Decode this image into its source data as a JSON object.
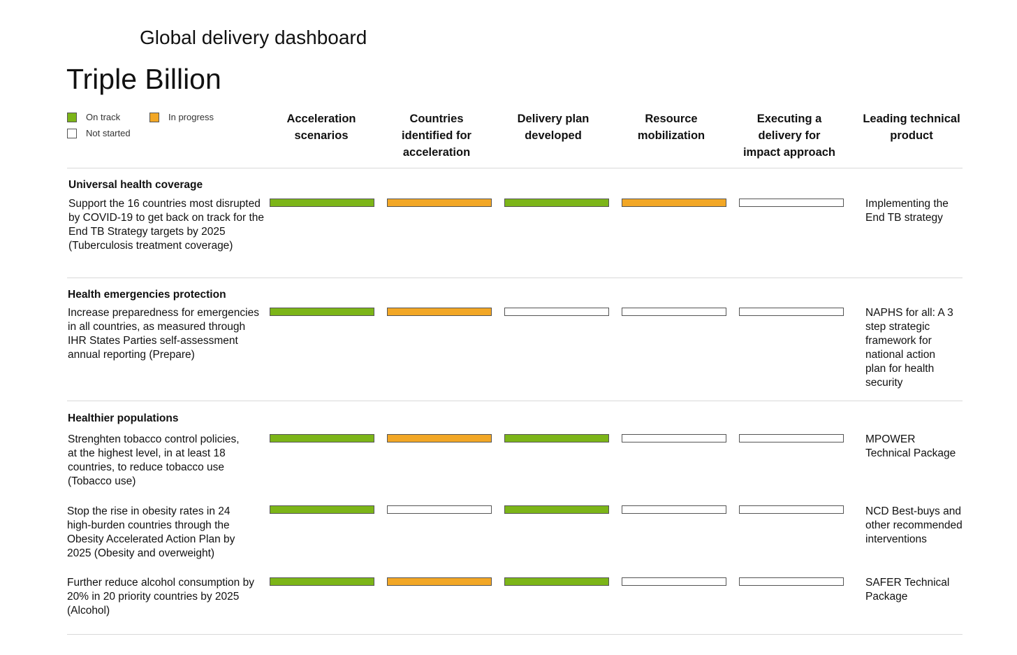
{
  "header": {
    "app_title": "Global delivery dashboard",
    "page_title": "Triple Billion"
  },
  "legend": [
    {
      "label": "On track",
      "status": "on_track"
    },
    {
      "label": "In progress",
      "status": "in_progress"
    },
    {
      "label": "Not started",
      "status": "not_started"
    }
  ],
  "status_colors": {
    "on_track": "#7CB518",
    "in_progress": "#F2A726",
    "not_started": "#FFFFFF"
  },
  "columns": [
    "Acceleration scenarios",
    "Countries identified for acceleration",
    "Delivery plan developed",
    "Resource mobilization",
    "Executing a delivery for impact approach",
    "Leading technical product"
  ],
  "sections": [
    {
      "title": "Universal health coverage",
      "rows": [
        {
          "goal": "Support the 16 countries most disrupted by COVID-19 to get back on track for the End TB Strategy targets by 2025 (Tuberculosis treatment coverage)",
          "statuses": [
            "on_track",
            "in_progress",
            "on_track",
            "in_progress",
            "not_started"
          ],
          "product": "Implementing the End TB strategy"
        }
      ]
    },
    {
      "title": "Health emergencies protection",
      "rows": [
        {
          "goal": "Increase preparedness for emergencies in all countries, as measured through IHR States Parties self-assessment annual reporting (Prepare)",
          "statuses": [
            "on_track",
            "in_progress",
            "not_started",
            "not_started",
            "not_started"
          ],
          "product": "NAPHS for all: A 3 step strategic framework for national action plan for health security"
        }
      ]
    },
    {
      "title": "Healthier populations",
      "rows": [
        {
          "goal": "Strenghten tobacco control policies, at the highest level, in at least 18 countries, to reduce tobacco use (Tobacco use)",
          "statuses": [
            "on_track",
            "in_progress",
            "on_track",
            "not_started",
            "not_started"
          ],
          "product": "MPOWER Technical Package"
        },
        {
          "goal": "Stop the rise in obesity rates in 24 high-burden countries through the Obesity Accelerated Action Plan by 2025 (Obesity and overweight)",
          "statuses": [
            "on_track",
            "not_started",
            "on_track",
            "not_started",
            "not_started"
          ],
          "product": "NCD Best-buys and other recommended interventions"
        },
        {
          "goal": "Further reduce alcohol consumption by 20% in 20 priority countries by 2025 (Alcohol)",
          "statuses": [
            "on_track",
            "in_progress",
            "on_track",
            "not_started",
            "not_started"
          ],
          "product": "SAFER Technical Package"
        }
      ]
    }
  ]
}
